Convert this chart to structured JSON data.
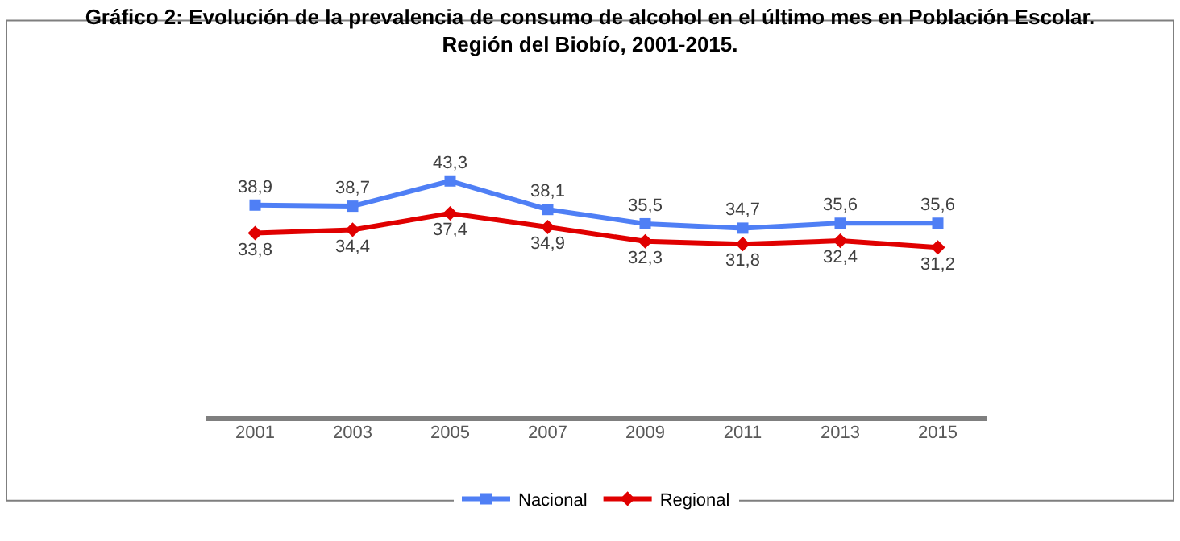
{
  "chart_data": {
    "type": "line",
    "title": "Gráfico 2: Evolución de la prevalencia de consumo de alcohol en el último mes en Población Escolar.\nRegión del Biobío, 2001-2015.",
    "categories": [
      "2001",
      "2003",
      "2005",
      "2007",
      "2009",
      "2011",
      "2013",
      "2015"
    ],
    "series": [
      {
        "name": "Nacional",
        "color": "#4f7ff5",
        "marker": "square",
        "values": [
          38.9,
          38.7,
          43.3,
          38.1,
          35.5,
          34.7,
          35.6,
          35.6
        ],
        "value_labels": [
          "38,9",
          "38,7",
          "43,3",
          "38,1",
          "35,5",
          "34,7",
          "35,6",
          "35,6"
        ]
      },
      {
        "name": "Regional",
        "color": "#e00000",
        "marker": "diamond",
        "values": [
          33.8,
          34.4,
          37.4,
          34.9,
          32.3,
          31.8,
          32.4,
          31.2
        ],
        "value_labels": [
          "33,8",
          "34,4",
          "37,4",
          "34,9",
          "32,3",
          "31,8",
          "32,4",
          "31,2"
        ]
      }
    ],
    "tick_labels": "x",
    "legend": "bottom",
    "line_style": "solid"
  }
}
